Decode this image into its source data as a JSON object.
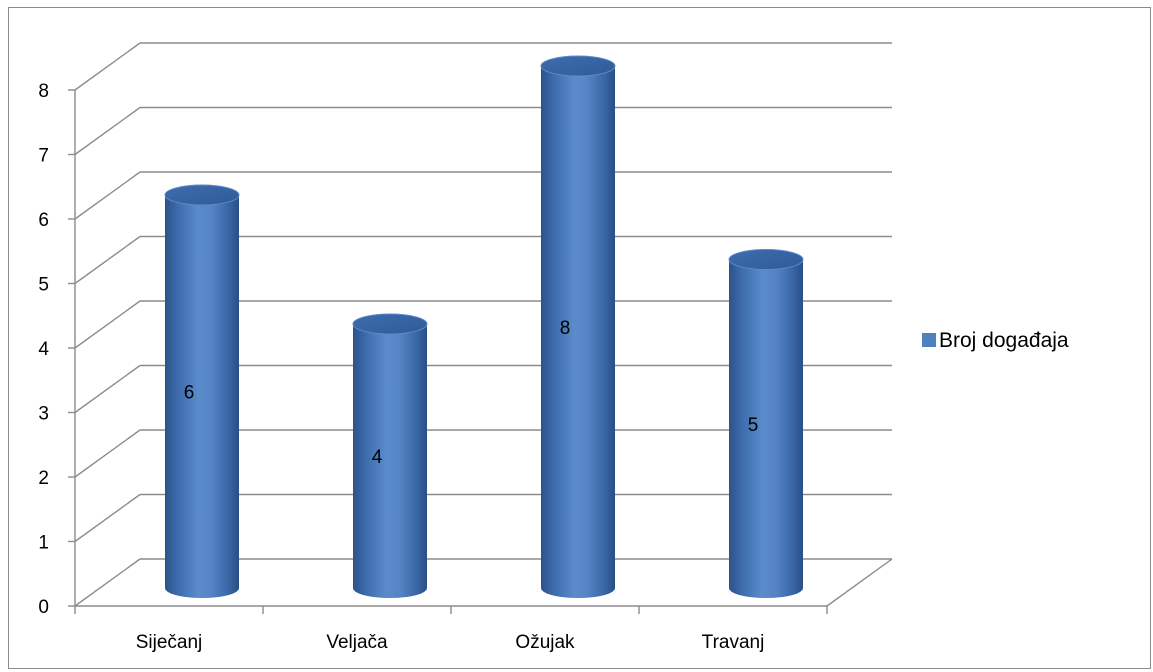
{
  "chart_data": {
    "type": "bar",
    "style": "3d-cylinder",
    "categories": [
      "Siječanj",
      "Veljača",
      "Ožujak",
      "Travanj"
    ],
    "series": [
      {
        "name": "Broj događaja",
        "values": [
          6,
          4,
          8,
          5
        ]
      }
    ],
    "y_ticks": [
      "0",
      "1",
      "2",
      "3",
      "4",
      "5",
      "6",
      "7",
      "8"
    ],
    "ylim": [
      0,
      8
    ],
    "grid": true,
    "legend_position": "right",
    "data_labels": true,
    "colors": {
      "bar": "#4F81BD",
      "bar_dark": "#2C5289",
      "bar_light": "#6E9BD6",
      "grid": "#8c8c8c"
    }
  }
}
